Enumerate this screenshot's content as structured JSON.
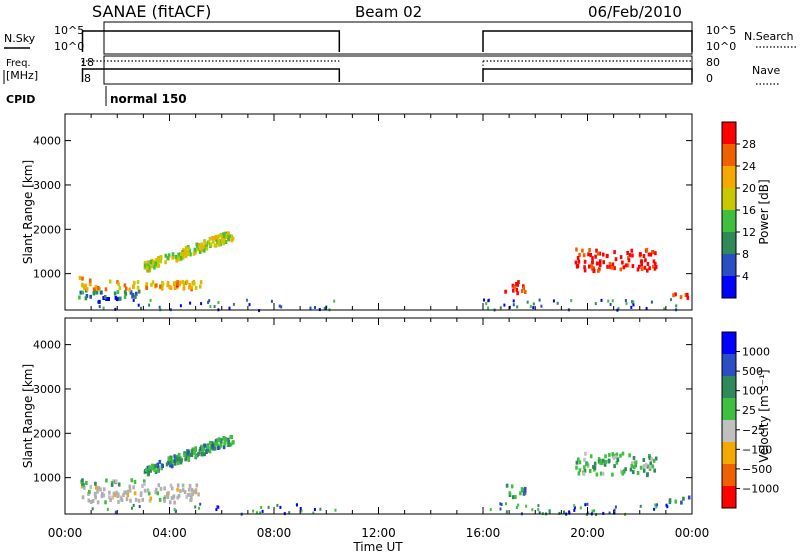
{
  "header": {
    "title": "SANAE (fitACF)",
    "beam": "Beam 02",
    "date": "06/Feb/2010"
  },
  "strip": {
    "nsky_label": "N.Sky",
    "nsky_ticks": [
      "10^5",
      "10^0"
    ],
    "nsearch_label": "N.Search",
    "nsearch_ticks": [
      "10^5",
      "10^0"
    ],
    "freq_label_1": "Freq.",
    "freq_label_2": "[MHz]",
    "freq_ticks": [
      "18",
      "8"
    ],
    "nave_label": "Nave",
    "nave_ticks": [
      "80",
      "0"
    ],
    "cpid_label": "CPID",
    "cpid_value": "normal 150",
    "on_intervals_hours": [
      [
        0.67,
        10.5
      ],
      [
        16.0,
        24.0
      ]
    ]
  },
  "colors": {
    "power_scale": [
      "#0000ff",
      "#2a4fc4",
      "#2f8a5a",
      "#3fbf3f",
      "#c8c800",
      "#f5a800",
      "#f06000",
      "#ff0000"
    ],
    "velocity_scale": [
      "#0000ff",
      "#2a4fc4",
      "#2f8a5a",
      "#3fbf3f",
      "#c0c0c0",
      "#f5a800",
      "#f06000",
      "#ff0000"
    ],
    "ground_scatter": "#b0b0b0"
  },
  "chart_data": [
    {
      "type": "heatmap",
      "title": "Power",
      "xlabel": "Time UT",
      "ylabel": "Slant Range [km]",
      "xlim_hours": [
        0,
        24
      ],
      "ylim_km": [
        180,
        4600
      ],
      "x_ticks": [
        "00:00",
        "04:00",
        "08:00",
        "12:00",
        "16:00",
        "20:00",
        "00:00"
      ],
      "y_ticks": [
        "1000",
        "2000",
        "3000",
        "4000"
      ],
      "colorbar_label": "Power [dB]",
      "colorbar_ticks": [
        "4",
        "8",
        "12",
        "16",
        "20",
        "24",
        "28"
      ],
      "regions": [
        {
          "t0": 0.8,
          "t1": 2.1,
          "r0": 400,
          "r1": 500,
          "level": 0.95
        },
        {
          "t0": 0.5,
          "t1": 3.0,
          "r0": 480,
          "r1": 680,
          "level": 0.65
        },
        {
          "t0": 0.5,
          "t1": 5.0,
          "r0": 680,
          "r1": 880,
          "level": 0.35
        },
        {
          "t0": 3.0,
          "t1": 5.2,
          "r0": 700,
          "r1": 880,
          "level": 0.25
        },
        {
          "t0": 0.5,
          "t1": 1.0,
          "r0": 880,
          "r1": 1000,
          "level": 0.2
        },
        {
          "t0": 3.0,
          "t1": 6.4,
          "r0": 1180,
          "r1": 2000,
          "level": 0.45
        },
        {
          "t0": 16.8,
          "t1": 17.6,
          "r0": 600,
          "r1": 900,
          "level": 0.1
        },
        {
          "t0": 23.0,
          "t1": 23.9,
          "r0": 480,
          "r1": 600,
          "level": 0.1
        },
        {
          "t0": 19.5,
          "t1": 22.6,
          "r0": 1100,
          "r1": 1600,
          "level": 0.05
        }
      ]
    },
    {
      "type": "heatmap",
      "title": "Velocity",
      "xlabel": "Time UT",
      "ylabel": "Slant Range [km]",
      "xlim_hours": [
        0,
        24
      ],
      "ylim_km": [
        180,
        4600
      ],
      "x_ticks": [
        "00:00",
        "04:00",
        "08:00",
        "12:00",
        "16:00",
        "20:00",
        "00:00"
      ],
      "y_ticks": [
        "1000",
        "2000",
        "3000",
        "4000"
      ],
      "colorbar_label": "Velocity [m s⁻¹]",
      "colorbar_ticks": [
        "1000",
        "500",
        "100",
        "25",
        "−25",
        "−100",
        "−500",
        "−1000"
      ],
      "regions": [
        {
          "t0": 0.5,
          "t1": 5.2,
          "r0": 480,
          "r1": 880,
          "level": 0.45,
          "ground": true
        },
        {
          "t0": 0.5,
          "t1": 3.0,
          "r0": 880,
          "r1": 1000,
          "level": 0.6
        },
        {
          "t0": 3.0,
          "t1": 6.4,
          "r0": 1180,
          "r1": 2000,
          "level": 0.65
        },
        {
          "t0": 16.8,
          "t1": 17.6,
          "r0": 600,
          "r1": 900,
          "level": 0.65
        },
        {
          "t0": 23.0,
          "t1": 23.9,
          "r0": 480,
          "r1": 600,
          "level": 0.7
        },
        {
          "t0": 19.5,
          "t1": 22.6,
          "r0": 1100,
          "r1": 1600,
          "level": 0.6
        }
      ]
    }
  ]
}
